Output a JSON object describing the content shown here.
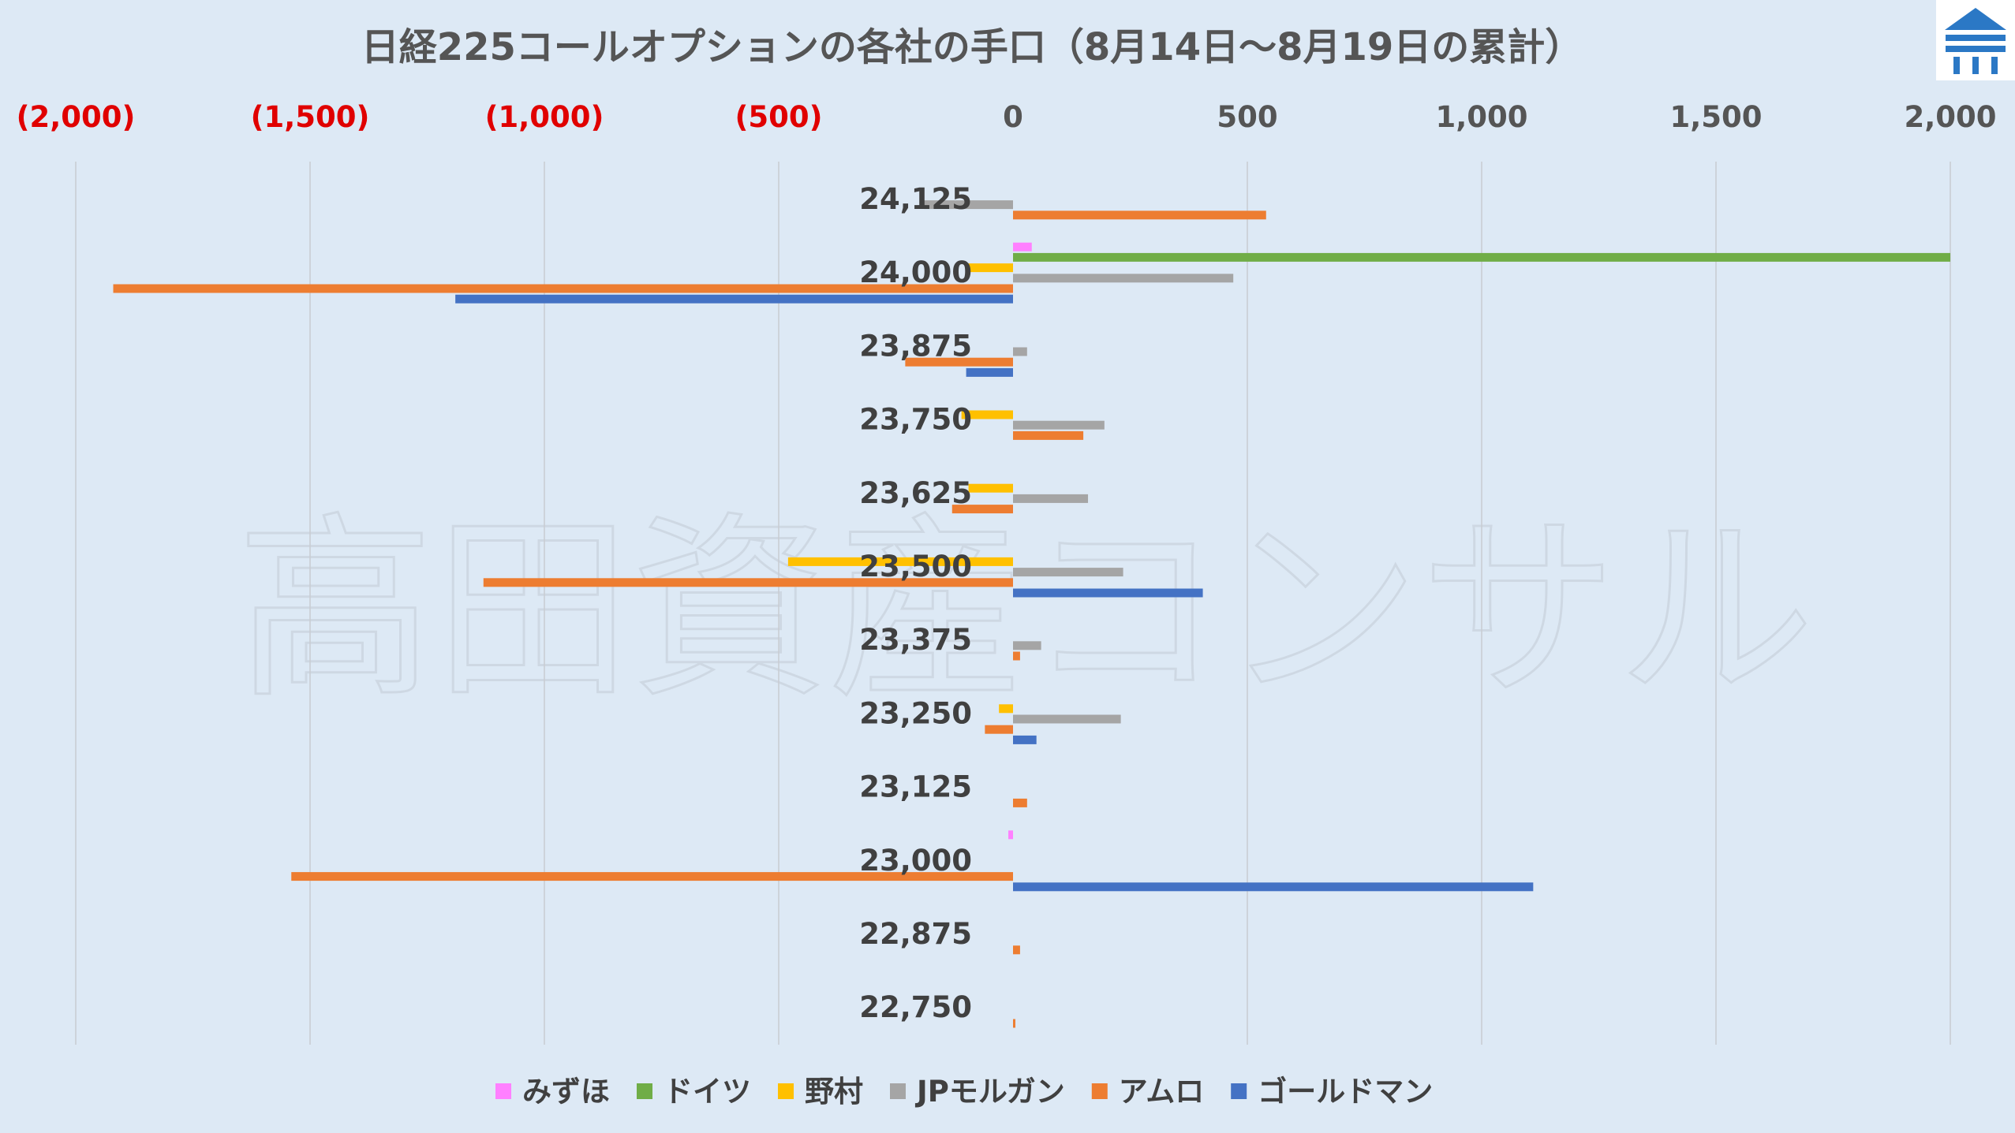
{
  "chart_data": {
    "type": "bar",
    "orientation": "horizontal",
    "title": "日経225コールオプションの各社の手口（8月14日～8月19日の累計）",
    "watermark": "高田資産コンサル",
    "xlim": [
      -2000,
      2000
    ],
    "x_ticks": [
      {
        "value": -2000,
        "label": "(2,000)"
      },
      {
        "value": -1500,
        "label": "(1,500)"
      },
      {
        "value": -1000,
        "label": "(1,000)"
      },
      {
        "value": -500,
        "label": "(500)"
      },
      {
        "value": 0,
        "label": "0"
      },
      {
        "value": 500,
        "label": "500"
      },
      {
        "value": 1000,
        "label": "1,000"
      },
      {
        "value": 1500,
        "label": "1,500"
      },
      {
        "value": 2000,
        "label": "2,000"
      }
    ],
    "negative_tick_color": "#e00000",
    "grid": true,
    "legend_position": "bottom",
    "categories": [
      "24,125",
      "24,000",
      "23,875",
      "23,750",
      "23,625",
      "23,500",
      "23,375",
      "23,250",
      "23,125",
      "23,000",
      "22,875",
      "22,750"
    ],
    "series": [
      {
        "name": "みずほ",
        "color": "#ff80ff",
        "values": [
          0,
          40,
          0,
          0,
          0,
          0,
          0,
          0,
          0,
          -10,
          0,
          0
        ]
      },
      {
        "name": "ドイツ",
        "color": "#70ad47",
        "values": [
          0,
          2000,
          0,
          0,
          0,
          0,
          0,
          0,
          0,
          0,
          0,
          0
        ]
      },
      {
        "name": "野村",
        "color": "#ffc000",
        "values": [
          0,
          -100,
          0,
          -110,
          -95,
          -480,
          0,
          -30,
          0,
          0,
          0,
          0
        ]
      },
      {
        "name": "JPモルガン",
        "color": "#a5a5a5",
        "values": [
          -190,
          470,
          30,
          195,
          160,
          235,
          60,
          230,
          0,
          0,
          0,
          0
        ]
      },
      {
        "name": "アムロ",
        "color": "#ed7d31",
        "values": [
          540,
          -1920,
          -230,
          150,
          -130,
          -1130,
          15,
          -60,
          30,
          -1540,
          15,
          5
        ]
      },
      {
        "name": "ゴールドマン",
        "color": "#4472c4",
        "values": [
          0,
          -1190,
          -100,
          0,
          0,
          405,
          0,
          50,
          0,
          1110,
          0,
          0
        ]
      }
    ]
  }
}
